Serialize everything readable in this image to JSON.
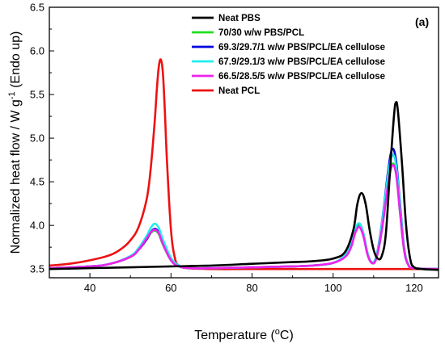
{
  "chart_data": {
    "type": "line",
    "title": "",
    "panel_label": "(a)",
    "xlabel": "Temperature (",
    "xlabel_sup": "o",
    "xlabel_tail": "C)",
    "ylabel": "Normalized heat flow / W g",
    "ylabel_sup": "-1",
    "ylabel_tail": " (Endo up)",
    "xlim": [
      30,
      126
    ],
    "ylim": [
      3.4,
      6.5
    ],
    "xticks": [
      40,
      60,
      80,
      100,
      120
    ],
    "yticks": [
      3.5,
      4.0,
      4.5,
      5.0,
      5.5,
      6.0,
      6.5
    ],
    "ytick_labels": [
      "3.5",
      "4.0",
      "4.5",
      "5.0",
      "5.5",
      "6.0",
      "6.5"
    ],
    "grid": false,
    "legend_position": "top-right",
    "series": [
      {
        "name": "Neat PBS",
        "color": "#000000",
        "x": [
          30,
          40,
          50,
          60,
          70,
          80,
          90,
          95,
          100,
          103,
          105,
          106,
          107,
          108,
          109,
          110,
          111,
          112,
          113,
          114,
          115,
          115.5,
          116,
          117,
          118,
          119,
          120,
          122,
          126
        ],
        "y": [
          3.5,
          3.51,
          3.52,
          3.53,
          3.54,
          3.56,
          3.58,
          3.59,
          3.62,
          3.7,
          3.95,
          4.25,
          4.37,
          4.25,
          3.95,
          3.72,
          3.62,
          3.65,
          3.9,
          4.6,
          5.25,
          5.41,
          5.3,
          4.7,
          4.0,
          3.62,
          3.52,
          3.5,
          3.49
        ]
      },
      {
        "name": "70/30 w/w PBS/PCL",
        "color": "#22dd22",
        "x": [
          30,
          40,
          45,
          50,
          52,
          54,
          55,
          56,
          57,
          58,
          60,
          62,
          65,
          70,
          80,
          90,
          95,
          100,
          103,
          104.5,
          105.5,
          106.5,
          107.5,
          108.5,
          109.5,
          110.5,
          111.5,
          112.5,
          113.5,
          114.5,
          115.5,
          116.5,
          117.5,
          118.5,
          120,
          126
        ],
        "y": [
          3.51,
          3.53,
          3.56,
          3.64,
          3.72,
          3.84,
          3.91,
          3.94,
          3.9,
          3.78,
          3.6,
          3.53,
          3.51,
          3.51,
          3.52,
          3.53,
          3.54,
          3.57,
          3.65,
          3.78,
          3.95,
          4.0,
          3.88,
          3.67,
          3.57,
          3.6,
          3.8,
          4.1,
          4.45,
          4.7,
          4.6,
          4.15,
          3.72,
          3.55,
          3.51,
          3.5
        ]
      },
      {
        "name": "69.3/29.7/1 w/w PBS/PCL/EA cellulose",
        "color": "#0000dd",
        "x": [
          30,
          40,
          45,
          50,
          52,
          54,
          55,
          56,
          57,
          58,
          60,
          62,
          65,
          70,
          80,
          90,
          95,
          100,
          103,
          104.5,
          105.5,
          106.5,
          107.5,
          108.5,
          109.5,
          110.5,
          111.5,
          112.5,
          113.5,
          114.5,
          115.5,
          116.5,
          117.5,
          118.5,
          120,
          126
        ],
        "y": [
          3.51,
          3.53,
          3.56,
          3.64,
          3.72,
          3.84,
          3.92,
          3.96,
          3.92,
          3.8,
          3.61,
          3.53,
          3.51,
          3.51,
          3.52,
          3.53,
          3.54,
          3.57,
          3.66,
          3.8,
          3.96,
          4.02,
          3.9,
          3.68,
          3.58,
          3.62,
          3.85,
          4.2,
          4.6,
          4.87,
          4.75,
          4.25,
          3.75,
          3.56,
          3.51,
          3.5
        ]
      },
      {
        "name": "67.9/29.1/3 w/w PBS/PCL/EA cellulose",
        "color": "#22eeee",
        "x": [
          30,
          40,
          45,
          50,
          52,
          54,
          55,
          56,
          57,
          58,
          60,
          62,
          65,
          70,
          80,
          90,
          95,
          100,
          103,
          104.5,
          105.5,
          106.5,
          107.5,
          108.5,
          109.5,
          110.5,
          111.5,
          112.5,
          113.5,
          114.5,
          115.5,
          116.5,
          117.5,
          118.5,
          120,
          126
        ],
        "y": [
          3.51,
          3.53,
          3.56,
          3.65,
          3.74,
          3.88,
          3.97,
          4.02,
          3.97,
          3.84,
          3.63,
          3.54,
          3.51,
          3.51,
          3.52,
          3.53,
          3.54,
          3.57,
          3.66,
          3.8,
          3.97,
          4.02,
          3.9,
          3.68,
          3.58,
          3.62,
          3.84,
          4.18,
          4.56,
          4.8,
          4.7,
          4.22,
          3.74,
          3.56,
          3.51,
          3.5
        ]
      },
      {
        "name": "66.5/28.5/5 w/w PBS/PCL/EA cellulose",
        "color": "#ee22ee",
        "x": [
          30,
          40,
          45,
          50,
          52,
          54,
          55,
          56,
          57,
          58,
          60,
          62,
          65,
          70,
          80,
          90,
          95,
          100,
          103,
          104.5,
          105.5,
          106.5,
          107.5,
          108.5,
          109.5,
          110.5,
          111.5,
          112.5,
          113.5,
          114.5,
          115.5,
          116.5,
          117.5,
          118.5,
          120,
          126
        ],
        "y": [
          3.51,
          3.53,
          3.56,
          3.64,
          3.72,
          3.85,
          3.92,
          3.95,
          3.91,
          3.79,
          3.6,
          3.53,
          3.51,
          3.51,
          3.52,
          3.53,
          3.54,
          3.57,
          3.64,
          3.76,
          3.92,
          3.98,
          3.87,
          3.66,
          3.57,
          3.6,
          3.8,
          4.1,
          4.45,
          4.68,
          4.6,
          4.15,
          3.72,
          3.55,
          3.51,
          3.5
        ]
      },
      {
        "name": "Neat PCL",
        "color": "#ee1111",
        "x": [
          30,
          35,
          40,
          45,
          48,
          50,
          52,
          54,
          55,
          56,
          56.5,
          57,
          57.5,
          58,
          58.5,
          59,
          60,
          61,
          62,
          64,
          70,
          80,
          90,
          100,
          110,
          120,
          126
        ],
        "y": [
          3.54,
          3.56,
          3.6,
          3.66,
          3.74,
          3.83,
          3.98,
          4.3,
          4.65,
          5.2,
          5.55,
          5.82,
          5.9,
          5.75,
          5.3,
          4.75,
          3.95,
          3.62,
          3.54,
          3.51,
          3.5,
          3.5,
          3.5,
          3.5,
          3.5,
          3.5,
          3.5
        ]
      }
    ]
  }
}
